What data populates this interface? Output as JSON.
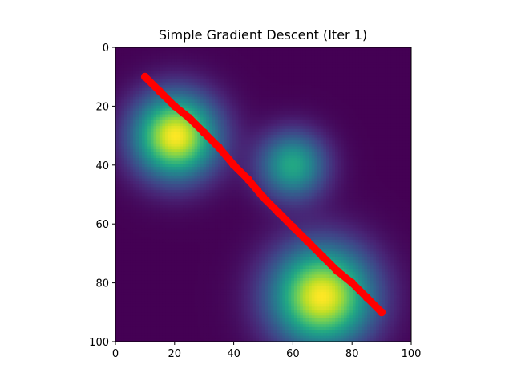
{
  "chart_data": {
    "type": "heatmap",
    "title": "Simple Gradient Descent (Iter 1)",
    "xlabel": "",
    "ylabel": "",
    "xlim": [
      0,
      100
    ],
    "ylim": [
      100,
      0
    ],
    "x_ticks": [
      0,
      20,
      40,
      60,
      80,
      100
    ],
    "y_ticks": [
      0,
      20,
      40,
      60,
      80,
      100
    ],
    "colormap": "viridis",
    "grid": false,
    "peaks": [
      {
        "x": 20,
        "y": 30,
        "amplitude": 1.0,
        "spread": 10
      },
      {
        "x": 60,
        "y": 40,
        "amplitude": 0.6,
        "spread": 8
      },
      {
        "x": 70,
        "y": 85,
        "amplitude": 1.0,
        "spread": 12
      }
    ],
    "path": {
      "color": "#ff0000",
      "points": [
        [
          10,
          10
        ],
        [
          15,
          15
        ],
        [
          20,
          20
        ],
        [
          25,
          24
        ],
        [
          30,
          29
        ],
        [
          35,
          34
        ],
        [
          40,
          40
        ],
        [
          45,
          45
        ],
        [
          50,
          51
        ],
        [
          55,
          56
        ],
        [
          60,
          61
        ],
        [
          65,
          66
        ],
        [
          70,
          71
        ],
        [
          75,
          76
        ],
        [
          80,
          80
        ],
        [
          85,
          85
        ],
        [
          90,
          90
        ]
      ]
    }
  }
}
